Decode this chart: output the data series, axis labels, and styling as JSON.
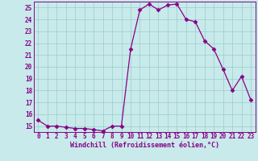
{
  "x": [
    0,
    1,
    2,
    3,
    4,
    5,
    6,
    7,
    8,
    9,
    10,
    11,
    12,
    13,
    14,
    15,
    16,
    17,
    18,
    19,
    20,
    21,
    22,
    23
  ],
  "y": [
    15.5,
    15.0,
    15.0,
    14.9,
    14.8,
    14.8,
    14.7,
    14.6,
    15.0,
    15.0,
    21.5,
    24.8,
    25.3,
    24.8,
    25.2,
    25.3,
    24.0,
    23.8,
    22.2,
    21.5,
    19.8,
    18.0,
    19.2,
    17.2
  ],
  "line_color": "#880088",
  "marker": "D",
  "markersize": 2.5,
  "linewidth": 0.9,
  "xlim": [
    -0.5,
    23.5
  ],
  "ylim": [
    14.5,
    25.5
  ],
  "yticks": [
    15,
    16,
    17,
    18,
    19,
    20,
    21,
    22,
    23,
    24,
    25
  ],
  "xticks": [
    0,
    1,
    2,
    3,
    4,
    5,
    6,
    7,
    8,
    9,
    10,
    11,
    12,
    13,
    14,
    15,
    16,
    17,
    18,
    19,
    20,
    21,
    22,
    23
  ],
  "xlabel": "Windchill (Refroidissement éolien,°C)",
  "grid_color": "#99cccc",
  "bg_color": "#c8eaea",
  "tick_label_fontsize": 5.5,
  "xlabel_fontsize": 6.0
}
